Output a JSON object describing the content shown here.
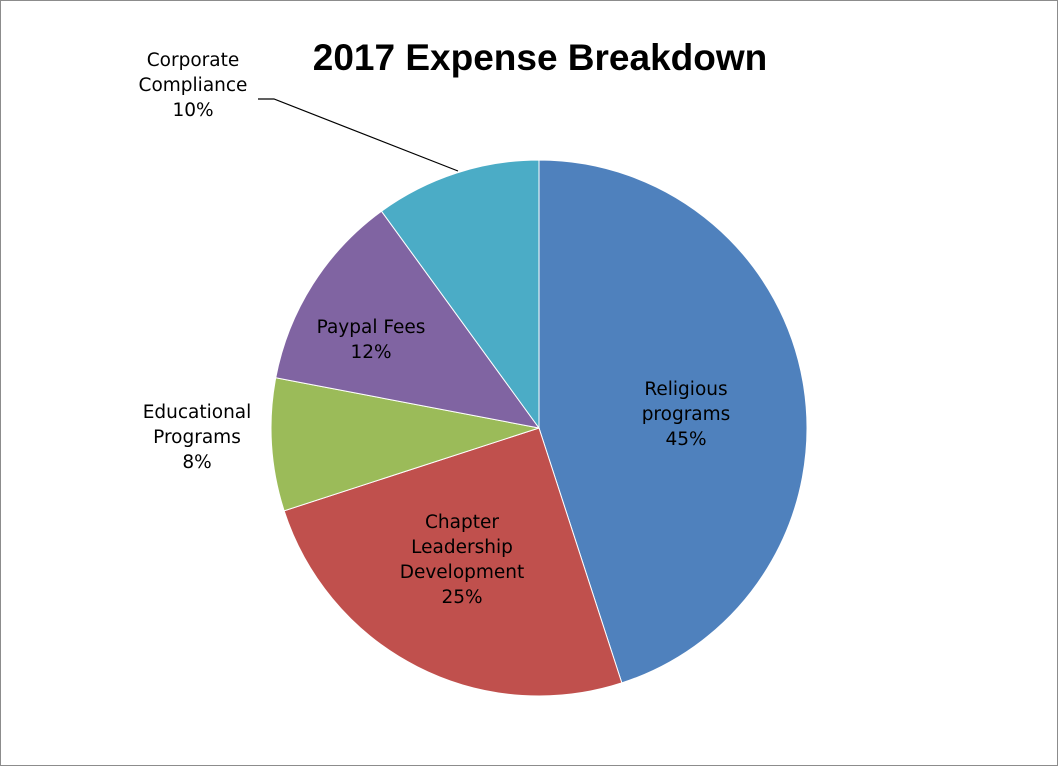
{
  "chart_data": {
    "type": "pie",
    "title": "2017 Expense Breakdown",
    "slices": [
      {
        "name": "Religious programs",
        "label_lines": [
          "Religious",
          "programs"
        ],
        "value": 45,
        "value_label": "45%",
        "color": "#4f81bd"
      },
      {
        "name": "Chapter Leadership Development",
        "label_lines": [
          "Chapter",
          "Leadership",
          "Development"
        ],
        "value": 25,
        "value_label": "25%",
        "color": "#c0504d"
      },
      {
        "name": "Educational Programs",
        "label_lines": [
          "Educational",
          "Programs"
        ],
        "value": 8,
        "value_label": "8%",
        "color": "#9bbb59"
      },
      {
        "name": "Paypal Fees",
        "label_lines": [
          "Paypal Fees"
        ],
        "value": 12,
        "value_label": "12%",
        "color": "#8064a2"
      },
      {
        "name": "Corporate Compliance",
        "label_lines": [
          "Corporate",
          "Compliance"
        ],
        "value": 10,
        "value_label": "10%",
        "color": "#4bacc6"
      }
    ],
    "start_angle_deg": 0,
    "direction": "clockwise",
    "legend": "none",
    "data_labels": "category name and percentage"
  }
}
